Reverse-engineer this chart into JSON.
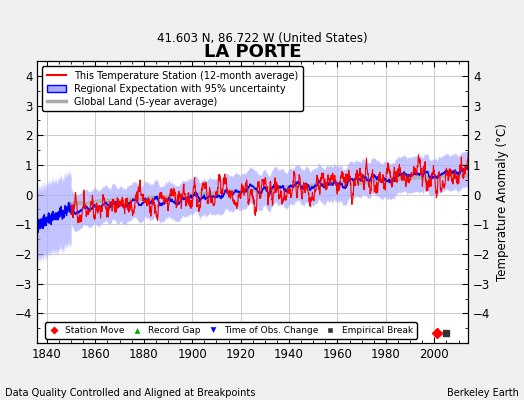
{
  "title": "LA PORTE",
  "subtitle": "41.603 N, 86.722 W (United States)",
  "ylabel": "Temperature Anomaly (°C)",
  "xlabel_years": [
    1840,
    1860,
    1880,
    1900,
    1920,
    1940,
    1960,
    1980,
    2000
  ],
  "ylim": [
    -5,
    4.5
  ],
  "yticks": [
    -4,
    -3,
    -2,
    -1,
    0,
    1,
    2,
    3,
    4
  ],
  "xmin": 1836,
  "xmax": 2014,
  "footer_left": "Data Quality Controlled and Aligned at Breakpoints",
  "footer_right": "Berkeley Earth",
  "legend_entries": [
    "This Temperature Station (12-month average)",
    "Regional Expectation with 95% uncertainty",
    "Global Land (5-year average)"
  ],
  "station_color": "#FF0000",
  "regional_color": "#0000FF",
  "regional_fill_color": "#AAAAFF",
  "global_color": "#AAAAAA",
  "bg_color": "#F0F0F0",
  "plot_bg_color": "#FFFFFF",
  "grid_color": "#CCCCCC",
  "marker_colors": {
    "station_move": "#FF0000",
    "record_gap": "#00AA00",
    "obs_change": "#0000FF",
    "empirical": "#333333"
  }
}
